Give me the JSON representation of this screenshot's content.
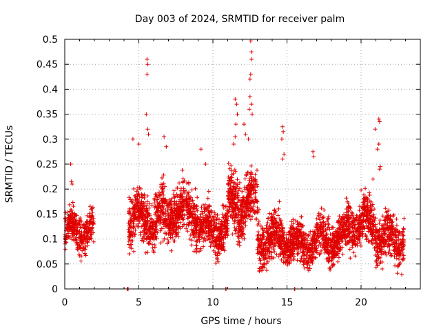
{
  "chart_data": {
    "type": "scatter",
    "title": "Day 003 of 2024, SRMTID for receiver palm",
    "xlabel": "GPS time / hours",
    "ylabel": "SRMTID / TECUs",
    "xlim": [
      0,
      24
    ],
    "ylim": [
      0,
      0.5
    ],
    "x_ticks": [
      0,
      5,
      10,
      15,
      20
    ],
    "x_tick_labels": [
      "0",
      "5",
      "10",
      "15",
      "20"
    ],
    "y_ticks": [
      0,
      0.05,
      0.1,
      0.15,
      0.2,
      0.25,
      0.3,
      0.35,
      0.4,
      0.45,
      0.5
    ],
    "y_tick_labels": [
      "0",
      "0.05",
      "0.1",
      "0.15",
      "0.2",
      "0.25",
      "0.3",
      "0.35",
      "0.4",
      "0.45",
      "0.5"
    ],
    "grid": true,
    "marker": "plus",
    "color": "#e00000",
    "series": [
      {
        "name": "SRMTID",
        "segments": [
          {
            "x_start": 0.0,
            "x_end": 1.95,
            "baseline": 0.115,
            "spread": 0.035,
            "n": 320
          },
          {
            "x_start": 4.2,
            "x_end": 4.3,
            "baseline": 0.0,
            "spread": 0.0,
            "n": 6
          },
          {
            "x_start": 10.85,
            "x_end": 10.9,
            "baseline": 0.0,
            "spread": 0.0,
            "n": 2
          },
          {
            "x_start": 15.5,
            "x_end": 15.55,
            "baseline": 0.0,
            "spread": 0.0,
            "n": 2
          },
          {
            "x_start": 4.3,
            "x_end": 7.0,
            "baseline": 0.14,
            "spread": 0.05,
            "n": 520
          },
          {
            "x_start": 7.0,
            "x_end": 9.0,
            "baseline": 0.155,
            "spread": 0.05,
            "n": 420
          },
          {
            "x_start": 9.0,
            "x_end": 11.0,
            "baseline": 0.12,
            "spread": 0.04,
            "n": 380
          },
          {
            "x_start": 11.0,
            "x_end": 13.0,
            "baseline": 0.17,
            "spread": 0.055,
            "n": 420
          },
          {
            "x_start": 13.0,
            "x_end": 15.0,
            "baseline": 0.1,
            "spread": 0.045,
            "n": 380
          },
          {
            "x_start": 15.0,
            "x_end": 17.0,
            "baseline": 0.09,
            "spread": 0.04,
            "n": 380
          },
          {
            "x_start": 17.0,
            "x_end": 19.0,
            "baseline": 0.1,
            "spread": 0.04,
            "n": 380
          },
          {
            "x_start": 19.0,
            "x_end": 21.0,
            "baseline": 0.13,
            "spread": 0.045,
            "n": 380
          },
          {
            "x_start": 21.0,
            "x_end": 22.9,
            "baseline": 0.1,
            "spread": 0.045,
            "n": 340
          }
        ],
        "spikes": [
          {
            "x": 0.4,
            "y": 0.25
          },
          {
            "x": 0.45,
            "y": 0.215
          },
          {
            "x": 0.5,
            "y": 0.21
          },
          {
            "x": 5.55,
            "y": 0.46
          },
          {
            "x": 5.6,
            "y": 0.45
          },
          {
            "x": 5.55,
            "y": 0.43
          },
          {
            "x": 5.5,
            "y": 0.35
          },
          {
            "x": 5.6,
            "y": 0.32
          },
          {
            "x": 5.65,
            "y": 0.31
          },
          {
            "x": 4.6,
            "y": 0.3
          },
          {
            "x": 5.0,
            "y": 0.29
          },
          {
            "x": 6.7,
            "y": 0.305
          },
          {
            "x": 6.85,
            "y": 0.285
          },
          {
            "x": 9.2,
            "y": 0.28
          },
          {
            "x": 9.5,
            "y": 0.25
          },
          {
            "x": 11.5,
            "y": 0.38
          },
          {
            "x": 11.6,
            "y": 0.37
          },
          {
            "x": 11.55,
            "y": 0.33
          },
          {
            "x": 11.65,
            "y": 0.35
          },
          {
            "x": 11.5,
            "y": 0.305
          },
          {
            "x": 11.4,
            "y": 0.29
          },
          {
            "x": 12.55,
            "y": 0.497
          },
          {
            "x": 12.6,
            "y": 0.475
          },
          {
            "x": 12.6,
            "y": 0.46
          },
          {
            "x": 12.55,
            "y": 0.43
          },
          {
            "x": 12.5,
            "y": 0.42
          },
          {
            "x": 12.5,
            "y": 0.385
          },
          {
            "x": 12.6,
            "y": 0.37
          },
          {
            "x": 12.45,
            "y": 0.36
          },
          {
            "x": 12.65,
            "y": 0.35
          },
          {
            "x": 12.1,
            "y": 0.33
          },
          {
            "x": 12.2,
            "y": 0.31
          },
          {
            "x": 12.4,
            "y": 0.3
          },
          {
            "x": 14.7,
            "y": 0.325
          },
          {
            "x": 14.75,
            "y": 0.315
          },
          {
            "x": 14.65,
            "y": 0.3
          },
          {
            "x": 14.8,
            "y": 0.27
          },
          {
            "x": 14.7,
            "y": 0.26
          },
          {
            "x": 16.75,
            "y": 0.275
          },
          {
            "x": 16.8,
            "y": 0.265
          },
          {
            "x": 21.2,
            "y": 0.34
          },
          {
            "x": 21.25,
            "y": 0.335
          },
          {
            "x": 20.95,
            "y": 0.32
          },
          {
            "x": 21.2,
            "y": 0.29
          },
          {
            "x": 21.1,
            "y": 0.28
          },
          {
            "x": 21.3,
            "y": 0.245
          },
          {
            "x": 21.25,
            "y": 0.24
          },
          {
            "x": 20.8,
            "y": 0.22
          }
        ]
      }
    ]
  }
}
